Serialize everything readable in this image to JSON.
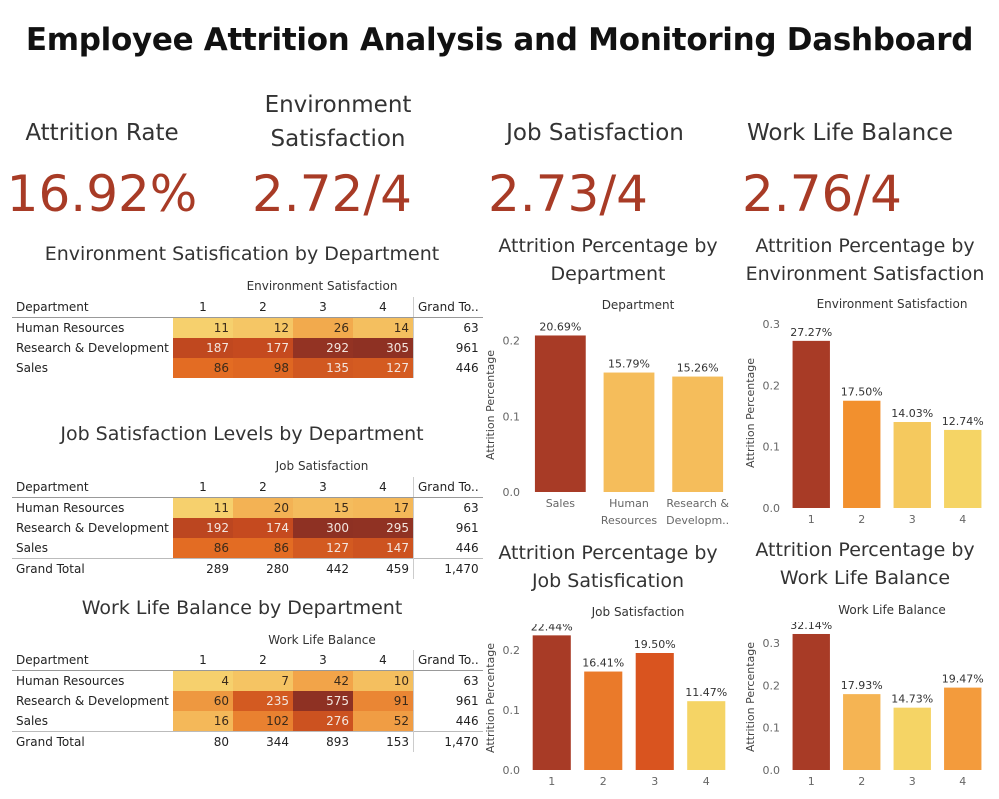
{
  "title": "Employee Attrition Analysis and Monitoring Dashboard",
  "kpis": [
    {
      "label": "Attrition Rate",
      "value": "16.92%"
    },
    {
      "label": "Environment Satisfaction",
      "value": "2.72/4"
    },
    {
      "label": "Job Satisfaction",
      "value": "2.73/4"
    },
    {
      "label": "Work Life Balance",
      "value": "2.76/4"
    }
  ],
  "tables": {
    "env": {
      "title": "Environment Satisfication by Department",
      "column_group": "Environment Satisfaction",
      "header": [
        "Department",
        "1",
        "2",
        "3",
        "4",
        "Grand To.."
      ],
      "rows": [
        {
          "dept": "Human Resources",
          "values": [
            11,
            12,
            26,
            14
          ],
          "total": "63"
        },
        {
          "dept": "Research & Development",
          "values": [
            187,
            177,
            292,
            305
          ],
          "total": "961"
        },
        {
          "dept": "Sales",
          "values": [
            86,
            98,
            135,
            127
          ],
          "total": "446"
        }
      ]
    },
    "job": {
      "title": "Job Satisfaction Levels by Department",
      "column_group": "Job Satisfaction",
      "header": [
        "Department",
        "1",
        "2",
        "3",
        "4",
        "Grand To.."
      ],
      "rows": [
        {
          "dept": "Human Resources",
          "values": [
            11,
            20,
            15,
            17
          ],
          "total": "63"
        },
        {
          "dept": "Research & Development",
          "values": [
            192,
            174,
            300,
            295
          ],
          "total": "961"
        },
        {
          "dept": "Sales",
          "values": [
            86,
            86,
            127,
            147
          ],
          "total": "446"
        }
      ],
      "grand_total": {
        "label": "Grand Total",
        "values": [
          "289",
          "280",
          "442",
          "459"
        ],
        "total": "1,470"
      }
    },
    "wlb": {
      "title": "Work Life Balance by Department",
      "column_group": "Work Life Balance",
      "header": [
        "Department",
        "1",
        "2",
        "3",
        "4",
        "Grand To.."
      ],
      "rows": [
        {
          "dept": "Human Resources",
          "values": [
            4,
            7,
            42,
            10
          ],
          "total": "63"
        },
        {
          "dept": "Research & Development",
          "values": [
            60,
            235,
            575,
            91
          ],
          "total": "961"
        },
        {
          "dept": "Sales",
          "values": [
            16,
            102,
            276,
            52
          ],
          "total": "446"
        }
      ],
      "grand_total": {
        "label": "Grand Total",
        "values": [
          "80",
          "344",
          "893",
          "153"
        ],
        "total": "1,470"
      }
    }
  },
  "chart_titles": {
    "dept": "Attrition Percentage by Department",
    "env": "Attrition Percentage by Environment Satisfaction",
    "job": "Attrition Percentage by Job Satisfication",
    "wlb": "Attrition Percentage by Work Life Balance"
  },
  "colors": {
    "accent": "#a83b26",
    "heat_low": "#f6d06d",
    "heat_high": "#8e3123"
  },
  "chart_data": [
    {
      "id": "dept",
      "type": "bar",
      "title": "Attrition Percentage by Department",
      "xlabel": "Department",
      "ylabel": "Attrition Percentage",
      "categories": [
        "Sales",
        "Human Resources",
        "Research & Developm.."
      ],
      "category_lines": [
        [
          "Sales"
        ],
        [
          "Human",
          "Resources"
        ],
        [
          "Research &",
          "Developm.."
        ]
      ],
      "values": [
        0.2069,
        0.1579,
        0.1526
      ],
      "labels": [
        "20.69%",
        "15.79%",
        "15.26%"
      ],
      "colors": [
        "#a83b26",
        "#f5bd5b",
        "#f5bd5b"
      ],
      "yticks": [
        0.0,
        0.1,
        0.2
      ],
      "ylim": [
        0,
        0.23
      ],
      "grid": false
    },
    {
      "id": "env",
      "type": "bar",
      "title": "Attrition Percentage by Environment Satisfaction",
      "xlabel": "Environment Satisfaction",
      "ylabel": "Attrition Percentage",
      "categories": [
        "1",
        "2",
        "3",
        "4"
      ],
      "category_lines": [
        [
          "1"
        ],
        [
          "2"
        ],
        [
          "3"
        ],
        [
          "4"
        ]
      ],
      "values": [
        0.2727,
        0.175,
        0.1403,
        0.1274
      ],
      "labels": [
        "27.27%",
        "17.50%",
        "14.03%",
        "12.74%"
      ],
      "colors": [
        "#a83b26",
        "#f2902e",
        "#f5c95e",
        "#f5d465"
      ],
      "yticks": [
        0.0,
        0.1,
        0.2,
        0.3
      ],
      "ylim": [
        0,
        0.31
      ],
      "grid": false
    },
    {
      "id": "job",
      "type": "bar",
      "title": "Attrition Percentage by Job Satisfication",
      "xlabel": "Job Satisfaction",
      "ylabel": "Attrition Percentage",
      "categories": [
        "1",
        "2",
        "3",
        "4"
      ],
      "category_lines": [
        [
          "1"
        ],
        [
          "2"
        ],
        [
          "3"
        ],
        [
          "4"
        ]
      ],
      "values": [
        0.2244,
        0.1641,
        0.195,
        0.1147
      ],
      "labels": [
        "22.44%",
        "16.41%",
        "19.50%",
        "11.47%"
      ],
      "colors": [
        "#a83b26",
        "#ea7a2a",
        "#d9541f",
        "#f5d465"
      ],
      "yticks": [
        0.0,
        0.1,
        0.2
      ],
      "ylim": [
        0,
        0.24
      ],
      "grid": false
    },
    {
      "id": "wlb",
      "type": "bar",
      "title": "Attrition Percentage by Work Life Balance",
      "xlabel": "Work Life Balance",
      "ylabel": "Attrition Percentage",
      "categories": [
        "1",
        "2",
        "3",
        "4"
      ],
      "category_lines": [
        [
          "1"
        ],
        [
          "2"
        ],
        [
          "3"
        ],
        [
          "4"
        ]
      ],
      "values": [
        0.3214,
        0.1793,
        0.1473,
        0.1947
      ],
      "labels": [
        "32.14%",
        "17.93%",
        "14.73%",
        "19.47%"
      ],
      "colors": [
        "#a83b26",
        "#f5b453",
        "#f5d465",
        "#f39b3c"
      ],
      "yticks": [
        0.0,
        0.1,
        0.2,
        0.3
      ],
      "ylim": [
        0,
        0.345
      ],
      "grid": false
    }
  ]
}
